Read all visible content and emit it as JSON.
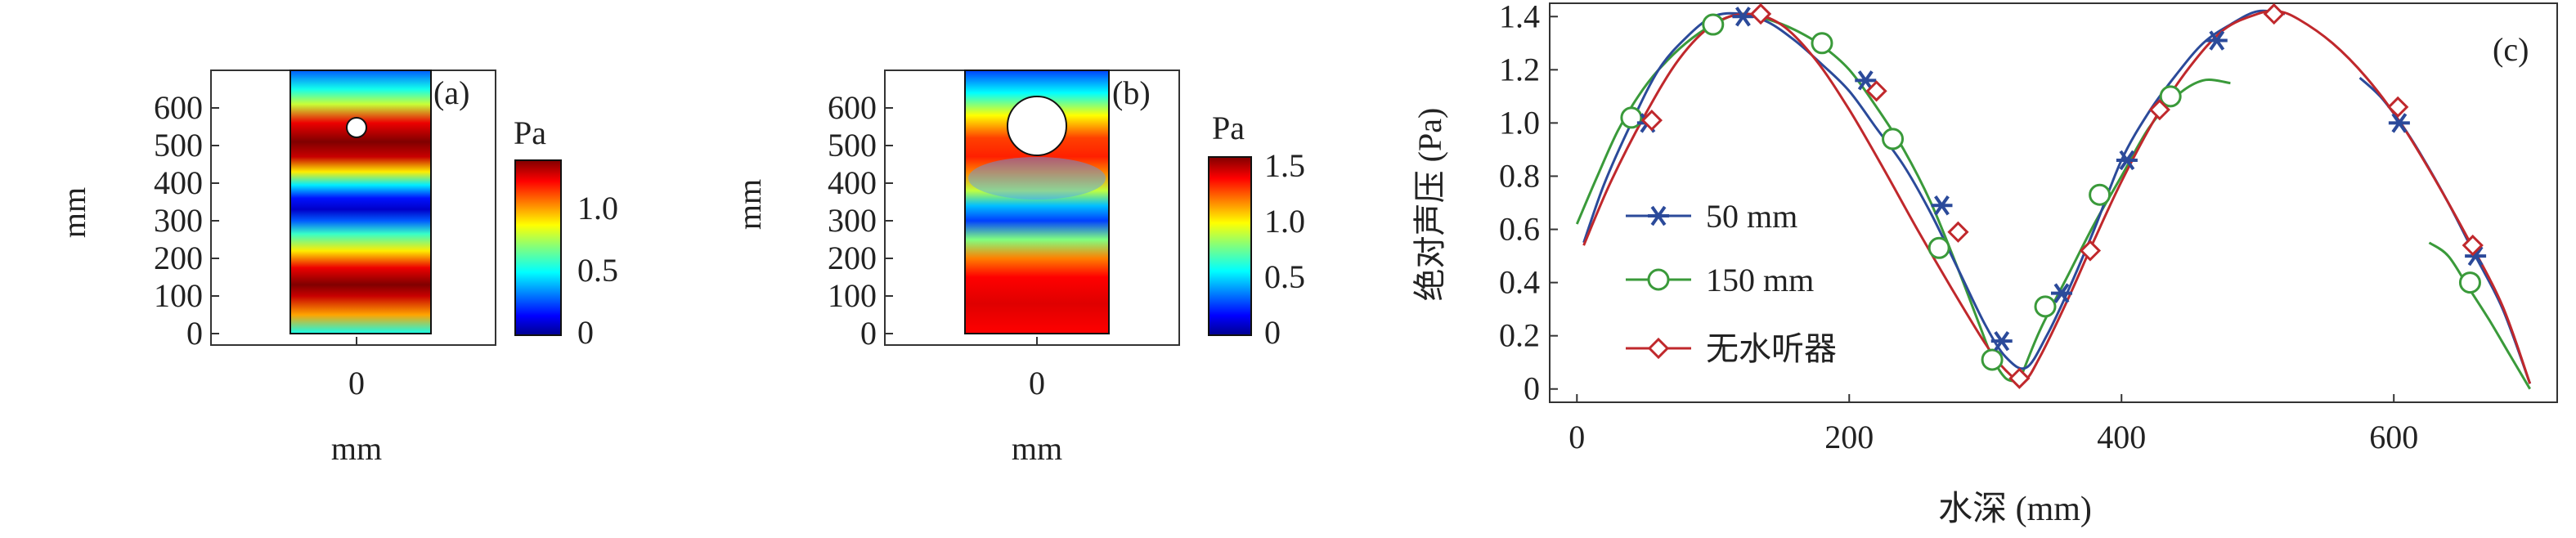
{
  "chart_data": [
    {
      "type": "heatmap",
      "panel_label": "(a)",
      "ylabel": "mm",
      "xlabel": "mm",
      "x_ticks": [
        "0"
      ],
      "y_ticks": [
        "0",
        "100",
        "200",
        "300",
        "400",
        "500",
        "600"
      ],
      "ylim": [
        0,
        700
      ],
      "colorbar": {
        "unit": "Pa",
        "ticks": [
          "0",
          "0.5",
          "1.0"
        ],
        "range": [
          0,
          1.4
        ]
      },
      "field_profile": {
        "depth_mm": [
          0,
          50,
          100,
          130,
          175,
          220,
          265,
          300,
          330,
          360,
          395,
          430,
          470,
          510,
          560,
          610,
          650,
          700
        ],
        "pressure_Pa": [
          0.55,
          1.0,
          1.3,
          1.4,
          1.25,
          0.9,
          0.6,
          0.3,
          0.1,
          0.2,
          0.5,
          0.9,
          1.3,
          1.4,
          1.25,
          0.8,
          0.55,
          0.3
        ]
      },
      "hydrophone": {
        "diameter_mm": 50,
        "center_mm": 540
      }
    },
    {
      "type": "heatmap",
      "panel_label": "(b)",
      "ylabel": "mm",
      "xlabel": "mm",
      "x_ticks": [
        "0"
      ],
      "y_ticks": [
        "0",
        "100",
        "200",
        "300",
        "400",
        "500",
        "600"
      ],
      "ylim": [
        0,
        700
      ],
      "colorbar": {
        "unit": "Pa",
        "ticks": [
          "0",
          "0.5",
          "1.0",
          "1.5"
        ],
        "range": [
          0,
          1.6
        ]
      },
      "field_profile": {
        "depth_mm": [
          0,
          80,
          150,
          200,
          250,
          300,
          340,
          380,
          430,
          470,
          520,
          580,
          640,
          700
        ],
        "pressure_Pa": [
          1.4,
          1.45,
          1.4,
          1.2,
          0.8,
          0.3,
          0.5,
          0.9,
          1.2,
          1.35,
          1.3,
          1.0,
          0.6,
          0.3
        ]
      },
      "hydrophone": {
        "diameter_mm": 150,
        "center_mm": 540
      }
    },
    {
      "type": "line",
      "panel_label": "(c)",
      "xlabel": "水深 (mm)",
      "ylabel": "绝对声压 (Pa)",
      "xlim": [
        -20,
        720
      ],
      "ylim": [
        -0.05,
        1.45
      ],
      "x_ticks": [
        0,
        200,
        400,
        600
      ],
      "y_ticks": [
        0,
        0.2,
        0.4,
        0.6,
        0.8,
        1.0,
        1.2,
        1.4
      ],
      "legend_position": "left-middle",
      "series": [
        {
          "name": "50 mm",
          "color": "#2b4a9a",
          "marker": "asterisk",
          "line_segments": [
            {
              "x": [
                5,
                20,
                40,
                60,
                80,
                100,
                120,
                140,
                160,
                180,
                200,
                220,
                240,
                260,
                280,
                300,
                315,
                330,
                345,
                360,
                380,
                400,
                420,
                440,
                460,
                480,
                500,
                520
              ],
              "y": [
                0.55,
                0.77,
                1.0,
                1.2,
                1.32,
                1.4,
                1.41,
                1.38,
                1.31,
                1.22,
                1.12,
                0.98,
                0.84,
                0.66,
                0.45,
                0.24,
                0.12,
                0.08,
                0.2,
                0.36,
                0.6,
                0.86,
                1.04,
                1.18,
                1.3,
                1.37,
                1.42,
                1.41
              ]
            },
            {
              "x": [
                575,
                590,
                605,
                620,
                640,
                660,
                680,
                700
              ],
              "y": [
                1.17,
                1.1,
                1.0,
                0.88,
                0.7,
                0.5,
                0.3,
                0.02
              ]
            }
          ],
          "markers": {
            "x": [
              52,
              122,
              212,
              268,
              312,
              356,
              404,
              470,
              604,
              660
            ],
            "y": [
              1.0,
              1.4,
              1.16,
              0.69,
              0.18,
              0.36,
              0.86,
              1.31,
              1.0,
              0.5
            ]
          }
        },
        {
          "name": "150 mm",
          "color": "#3a9a3a",
          "marker": "circle",
          "line_segments": [
            {
              "x": [
                0,
                15,
                30,
                45,
                60,
                80,
                100,
                120,
                140,
                160,
                180,
                200,
                220,
                240,
                260,
                280,
                295,
                305,
                315,
                325
              ],
              "y": [
                0.62,
                0.8,
                0.97,
                1.1,
                1.2,
                1.3,
                1.37,
                1.41,
                1.39,
                1.35,
                1.29,
                1.2,
                1.06,
                0.9,
                0.7,
                0.45,
                0.25,
                0.12,
                0.04,
                0.03
              ]
            },
            {
              "x": [
                325,
                340,
                360,
                380,
                400,
                420,
                440,
                460,
                480
              ],
              "y": [
                0.03,
                0.22,
                0.42,
                0.62,
                0.8,
                0.98,
                1.1,
                1.16,
                1.15
              ]
            },
            {
              "x": [
                626,
                640,
                655,
                670,
                685,
                700
              ],
              "y": [
                0.55,
                0.5,
                0.38,
                0.26,
                0.13,
                0.0
              ]
            }
          ],
          "markers": {
            "x": [
              40,
              100,
              180,
              232,
              266,
              305,
              344,
              384,
              436,
              656
            ],
            "y": [
              1.02,
              1.37,
              1.3,
              0.94,
              0.53,
              0.11,
              0.31,
              0.73,
              1.1,
              0.4
            ]
          }
        },
        {
          "name": "无水听器",
          "color": "#c0282c",
          "marker": "diamond",
          "line_segments": [
            {
              "x": [
                5,
                25,
                50,
                75,
                100,
                125,
                150,
                175,
                200,
                225,
                250,
                275,
                300,
                315,
                328,
                340,
                360,
                380,
                400,
                425,
                450,
                475,
                500,
                515,
                530,
                555,
                580,
                605,
                630,
                655,
                680,
                700
              ],
              "y": [
                0.54,
                0.78,
                1.03,
                1.24,
                1.37,
                1.41,
                1.37,
                1.24,
                1.05,
                0.83,
                0.6,
                0.38,
                0.17,
                0.07,
                0.03,
                0.12,
                0.33,
                0.56,
                0.78,
                1.02,
                1.21,
                1.35,
                1.41,
                1.42,
                1.39,
                1.3,
                1.17,
                1.0,
                0.79,
                0.56,
                0.31,
                0.02
              ]
            }
          ],
          "markers": {
            "x": [
              55,
              135,
              220,
              280,
              325,
              377,
              428,
              512,
              603,
              658
            ],
            "y": [
              1.01,
              1.41,
              1.12,
              0.59,
              0.04,
              0.52,
              1.05,
              1.41,
              1.06,
              0.54
            ]
          }
        }
      ]
    }
  ]
}
